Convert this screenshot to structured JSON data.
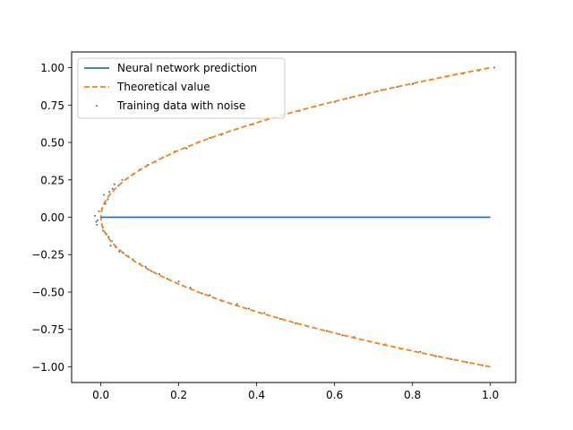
{
  "chart_data": {
    "type": "line",
    "title": "",
    "xlabel": "",
    "ylabel": "",
    "xlim": [
      -0.075,
      1.065
    ],
    "ylim": [
      -1.105,
      1.105
    ],
    "x_ticks": [
      0.0,
      0.2,
      0.4,
      0.6,
      0.8,
      1.0
    ],
    "x_tick_labels": [
      "0.0",
      "0.2",
      "0.4",
      "0.6",
      "0.8",
      "1.0"
    ],
    "y_ticks": [
      1.0,
      0.75,
      0.5,
      0.25,
      0.0,
      -0.25,
      -0.5,
      -0.75,
      -1.0
    ],
    "y_tick_labels": [
      "1.00",
      "0.75",
      "0.50",
      "0.25",
      "0.00",
      "−0.25",
      "−0.50",
      "−0.75",
      "−1.00"
    ],
    "grid": false,
    "legend_position": "top-left",
    "series": [
      {
        "name": "Neural network prediction",
        "kind": "line",
        "color": "#1f77b4",
        "style": "solid",
        "points": [
          [
            0.0,
            0.0
          ],
          [
            1.0,
            0.0
          ]
        ]
      },
      {
        "name": "Theoretical value",
        "kind": "line",
        "color": "#ff7f0e",
        "style": "dashed",
        "points": [
          [
            1.0,
            -1.0
          ],
          [
            0.9025,
            -0.95
          ],
          [
            0.81,
            -0.9
          ],
          [
            0.7225,
            -0.85
          ],
          [
            0.64,
            -0.8
          ],
          [
            0.5625,
            -0.75
          ],
          [
            0.49,
            -0.7
          ],
          [
            0.4225,
            -0.65
          ],
          [
            0.36,
            -0.6
          ],
          [
            0.3025,
            -0.55
          ],
          [
            0.25,
            -0.5
          ],
          [
            0.2025,
            -0.45
          ],
          [
            0.16,
            -0.4
          ],
          [
            0.1225,
            -0.35
          ],
          [
            0.09,
            -0.3
          ],
          [
            0.0625,
            -0.25
          ],
          [
            0.04,
            -0.2
          ],
          [
            0.0225,
            -0.15
          ],
          [
            0.01,
            -0.1
          ],
          [
            0.0025,
            -0.05
          ],
          [
            0.0,
            0.0
          ],
          [
            0.0025,
            0.05
          ],
          [
            0.01,
            0.1
          ],
          [
            0.0225,
            0.15
          ],
          [
            0.04,
            0.2
          ],
          [
            0.0625,
            0.25
          ],
          [
            0.09,
            0.3
          ],
          [
            0.1225,
            0.35
          ],
          [
            0.16,
            0.4
          ],
          [
            0.2025,
            0.45
          ],
          [
            0.25,
            0.5
          ],
          [
            0.3025,
            0.55
          ],
          [
            0.36,
            0.6
          ],
          [
            0.4225,
            0.65
          ],
          [
            0.49,
            0.7
          ],
          [
            0.5625,
            0.75
          ],
          [
            0.64,
            0.8
          ],
          [
            0.7225,
            0.85
          ],
          [
            0.81,
            0.9
          ],
          [
            0.9025,
            0.95
          ],
          [
            1.0,
            1.0
          ]
        ]
      },
      {
        "name": "Training data with noise",
        "kind": "scatter",
        "color": "#1f77b4",
        "points": [
          [
            -0.012,
            -0.03
          ],
          [
            0.005,
            -0.07
          ],
          [
            -0.008,
            -0.02
          ],
          [
            0.014,
            -0.11
          ],
          [
            0.02,
            -0.13
          ],
          [
            0.006,
            -0.09
          ],
          [
            0.028,
            -0.16
          ],
          [
            0.025,
            -0.19
          ],
          [
            0.038,
            -0.2
          ],
          [
            0.047,
            -0.23
          ],
          [
            0.058,
            -0.24
          ],
          [
            0.07,
            -0.26
          ],
          [
            0.082,
            -0.28
          ],
          [
            0.1,
            -0.31
          ],
          [
            0.115,
            -0.33
          ],
          [
            0.13,
            -0.36
          ],
          [
            0.15,
            -0.38
          ],
          [
            0.17,
            -0.41
          ],
          [
            0.2,
            -0.43
          ],
          [
            0.23,
            -0.47
          ],
          [
            0.26,
            -0.51
          ],
          [
            0.28,
            -0.52
          ],
          [
            0.31,
            -0.56
          ],
          [
            0.35,
            -0.58
          ],
          [
            0.38,
            -0.61
          ],
          [
            0.42,
            -0.64
          ],
          [
            0.46,
            -0.68
          ],
          [
            0.5,
            -0.71
          ],
          [
            0.53,
            -0.73
          ],
          [
            0.58,
            -0.76
          ],
          [
            0.62,
            -0.79
          ],
          [
            0.65,
            -0.8
          ],
          [
            0.69,
            -0.83
          ],
          [
            0.73,
            -0.85
          ],
          [
            0.77,
            -0.88
          ],
          [
            0.82,
            -0.9
          ],
          [
            0.86,
            -0.93
          ],
          [
            0.9,
            -0.95
          ],
          [
            0.94,
            -0.97
          ],
          [
            0.98,
            -0.99
          ],
          [
            -0.015,
            0.01
          ],
          [
            -0.005,
            0.04
          ],
          [
            0.003,
            0.06
          ],
          [
            0.012,
            0.09
          ],
          [
            0.018,
            0.12
          ],
          [
            0.008,
            0.15
          ],
          [
            0.022,
            0.17
          ],
          [
            0.03,
            0.19
          ],
          [
            0.035,
            0.22
          ],
          [
            0.045,
            0.21
          ],
          [
            0.055,
            0.25
          ],
          [
            0.068,
            0.26
          ],
          [
            0.085,
            0.29
          ],
          [
            0.1,
            0.32
          ],
          [
            0.12,
            0.35
          ],
          [
            0.14,
            0.37
          ],
          [
            0.16,
            0.4
          ],
          [
            0.19,
            0.44
          ],
          [
            0.22,
            0.46
          ],
          [
            0.25,
            0.5
          ],
          [
            0.28,
            0.53
          ],
          [
            0.31,
            0.55
          ],
          [
            0.35,
            0.59
          ],
          [
            0.39,
            0.62
          ],
          [
            0.43,
            0.66
          ],
          [
            0.47,
            0.69
          ],
          [
            0.51,
            0.71
          ],
          [
            0.55,
            0.74
          ],
          [
            0.6,
            0.77
          ],
          [
            0.64,
            0.8
          ],
          [
            0.68,
            0.82
          ],
          [
            0.72,
            0.85
          ],
          [
            0.76,
            0.87
          ],
          [
            0.8,
            0.89
          ],
          [
            0.85,
            0.92
          ],
          [
            0.89,
            0.94
          ],
          [
            0.93,
            0.96
          ],
          [
            0.97,
            0.98
          ],
          [
            1.01,
            1.0
          ],
          [
            -0.01,
            -0.05
          ]
        ]
      }
    ]
  }
}
